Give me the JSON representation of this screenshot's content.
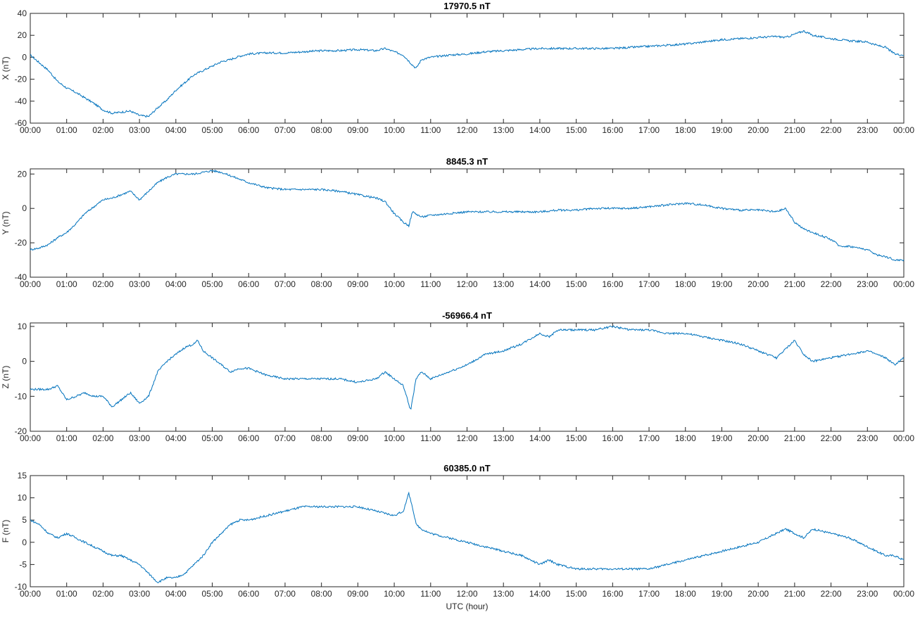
{
  "line_color": "#0072bd",
  "xlabel": "UTC (hour)",
  "x_tick_labels": [
    "00:00",
    "01:00",
    "02:00",
    "03:00",
    "04:00",
    "05:00",
    "06:00",
    "07:00",
    "08:00",
    "09:00",
    "10:00",
    "11:00",
    "12:00",
    "13:00",
    "14:00",
    "15:00",
    "16:00",
    "17:00",
    "18:00",
    "19:00",
    "20:00",
    "21:00",
    "22:00",
    "23:00",
    "00:00"
  ],
  "chart_data": [
    {
      "type": "line",
      "title": "17970.5 nT",
      "ylabel": "X (nT)",
      "ylim": [
        -60,
        40
      ],
      "yticks": [
        -60,
        -40,
        -20,
        0,
        20,
        40
      ],
      "xlim": [
        0,
        24
      ],
      "series": [
        {
          "x": [
            0,
            0.25,
            0.5,
            0.75,
            1,
            1.25,
            1.5,
            1.75,
            2,
            2.25,
            2.5,
            2.75,
            3,
            3.25,
            3.5,
            3.75,
            4,
            4.25,
            4.5,
            4.75,
            5,
            5.25,
            5.5,
            5.75,
            6,
            6.5,
            7,
            7.5,
            8,
            8.5,
            9,
            9.5,
            9.75,
            10,
            10.25,
            10.5,
            10.6,
            10.75,
            11,
            11.5,
            12,
            12.5,
            13,
            13.5,
            14,
            14.5,
            15,
            15.5,
            16,
            16.5,
            17,
            17.5,
            18,
            18.5,
            19,
            19.5,
            20,
            20.5,
            20.75,
            21,
            21.25,
            21.5,
            22,
            22.5,
            23,
            23.25,
            23.5,
            23.75,
            24
          ],
          "y": [
            2,
            -5,
            -12,
            -22,
            -28,
            -32,
            -37,
            -42,
            -48,
            -51,
            -50,
            -49,
            -53,
            -54,
            -46,
            -39,
            -30,
            -23,
            -16,
            -12,
            -8,
            -4,
            -2,
            1,
            3,
            4,
            4,
            5,
            6,
            6,
            7,
            6,
            8,
            5,
            2,
            -7,
            -10,
            -2,
            0,
            2,
            3,
            5,
            6,
            7,
            8,
            8,
            8,
            8,
            8,
            9,
            10,
            11,
            12,
            14,
            16,
            17,
            18,
            19,
            18,
            21,
            24,
            20,
            17,
            15,
            14,
            11,
            9,
            3,
            2
          ]
        }
      ]
    },
    {
      "type": "line",
      "title": "8845.3 nT",
      "ylabel": "Y (nT)",
      "ylim": [
        -40,
        23
      ],
      "yticks": [
        -40,
        -20,
        0,
        20
      ],
      "xlim": [
        0,
        24
      ],
      "series": [
        {
          "x": [
            0,
            0.25,
            0.5,
            0.75,
            1,
            1.25,
            1.5,
            1.75,
            2,
            2.25,
            2.5,
            2.75,
            3,
            3.25,
            3.5,
            3.75,
            4,
            4.25,
            4.5,
            4.75,
            5,
            5.25,
            5.5,
            5.75,
            6,
            6.5,
            7,
            7.5,
            8,
            8.5,
            9,
            9.5,
            9.75,
            10,
            10.25,
            10.4,
            10.5,
            10.75,
            11,
            11.5,
            12,
            12.5,
            13,
            13.5,
            14,
            14.5,
            15,
            15.5,
            16,
            16.5,
            17,
            17.5,
            18,
            18.5,
            19,
            19.5,
            20,
            20.5,
            20.75,
            21,
            21.25,
            21.5,
            22,
            22.25,
            22.5,
            23,
            23.25,
            23.5,
            23.75,
            24
          ],
          "y": [
            -24,
            -23,
            -21,
            -17,
            -14,
            -9,
            -3,
            1,
            5,
            6,
            8,
            10,
            5,
            10,
            15,
            18,
            20,
            20,
            20,
            21,
            22,
            21,
            19,
            17,
            15,
            12,
            11,
            11,
            11,
            10,
            8,
            6,
            4,
            -3,
            -8,
            -10,
            -2,
            -5,
            -4,
            -3,
            -2,
            -2,
            -2,
            -2,
            -2,
            -1,
            -1,
            0,
            0,
            0,
            1,
            2,
            3,
            2,
            0,
            -1,
            -1,
            -2,
            0,
            -8,
            -12,
            -14,
            -18,
            -22,
            -22,
            -24,
            -27,
            -28,
            -30,
            -30
          ]
        }
      ]
    },
    {
      "type": "line",
      "title": "-56966.4 nT",
      "ylabel": "Z (nT)",
      "ylim": [
        -20,
        11
      ],
      "yticks": [
        -20,
        -10,
        0,
        10
      ],
      "xlim": [
        0,
        24
      ],
      "series": [
        {
          "x": [
            0,
            0.25,
            0.5,
            0.75,
            1,
            1.25,
            1.5,
            1.75,
            2,
            2.25,
            2.5,
            2.75,
            3,
            3.25,
            3.5,
            3.75,
            4,
            4.25,
            4.5,
            4.6,
            4.75,
            5,
            5.25,
            5.5,
            5.75,
            6,
            6.5,
            7,
            7.5,
            8,
            8.5,
            9,
            9.5,
            9.75,
            10,
            10.25,
            10.45,
            10.6,
            10.75,
            11,
            11.5,
            12,
            12.5,
            13,
            13.5,
            14,
            14.25,
            14.5,
            15,
            15.5,
            16,
            16.5,
            17,
            17.5,
            18,
            18.5,
            19,
            19.5,
            20,
            20.5,
            21,
            21.25,
            21.5,
            22,
            22.5,
            23,
            23.25,
            23.5,
            23.75,
            24
          ],
          "y": [
            -8,
            -8,
            -8,
            -7,
            -11,
            -10,
            -9,
            -10,
            -10,
            -13,
            -11,
            -9,
            -12,
            -10,
            -3,
            0,
            2,
            4,
            5,
            6,
            3,
            1,
            -1,
            -3,
            -2,
            -2,
            -4,
            -5,
            -5,
            -5,
            -5,
            -6,
            -5,
            -3,
            -5,
            -7,
            -14,
            -5,
            -3,
            -5,
            -3,
            -1,
            2,
            3,
            5,
            8,
            7,
            9,
            9,
            9,
            10,
            9,
            9,
            8,
            8,
            7,
            6,
            5,
            3,
            1,
            6,
            2,
            0,
            1,
            2,
            3,
            2,
            1,
            -1,
            1
          ]
        }
      ]
    },
    {
      "type": "line",
      "title": "60385.0 nT",
      "ylabel": "F (nT)",
      "ylim": [
        -10,
        15
      ],
      "yticks": [
        -10,
        -5,
        0,
        5,
        10,
        15
      ],
      "xlim": [
        0,
        24
      ],
      "series": [
        {
          "x": [
            0,
            0.25,
            0.5,
            0.75,
            1,
            1.25,
            1.5,
            1.75,
            2,
            2.25,
            2.5,
            2.75,
            3,
            3.25,
            3.5,
            3.75,
            4,
            4.25,
            4.5,
            4.75,
            5,
            5.25,
            5.5,
            5.75,
            6,
            6.5,
            7,
            7.5,
            8,
            8.5,
            9,
            9.5,
            10,
            10.25,
            10.4,
            10.5,
            10.6,
            10.75,
            11,
            11.5,
            12,
            12.5,
            13,
            13.5,
            14,
            14.25,
            14.5,
            15,
            15.5,
            16,
            16.5,
            17,
            17.5,
            18,
            18.5,
            19,
            19.5,
            20,
            20.5,
            20.75,
            21,
            21.25,
            21.5,
            22,
            22.5,
            23,
            23.25,
            23.5,
            23.75,
            24
          ],
          "y": [
            5,
            4,
            2,
            1,
            2,
            1,
            0,
            -1,
            -2,
            -3,
            -3,
            -4,
            -5,
            -7,
            -9,
            -8,
            -8,
            -7,
            -5,
            -3,
            0,
            2,
            4,
            5,
            5,
            6,
            7,
            8,
            8,
            8,
            8,
            7,
            6,
            7,
            11,
            8,
            4,
            3,
            2,
            1,
            0,
            -1,
            -2,
            -3,
            -5,
            -4,
            -5,
            -6,
            -6,
            -6,
            -6,
            -6,
            -5,
            -4,
            -3,
            -2,
            -1,
            0,
            2,
            3,
            2,
            1,
            3,
            2,
            1,
            -1,
            -2,
            -3,
            -3,
            -4
          ]
        }
      ]
    }
  ]
}
